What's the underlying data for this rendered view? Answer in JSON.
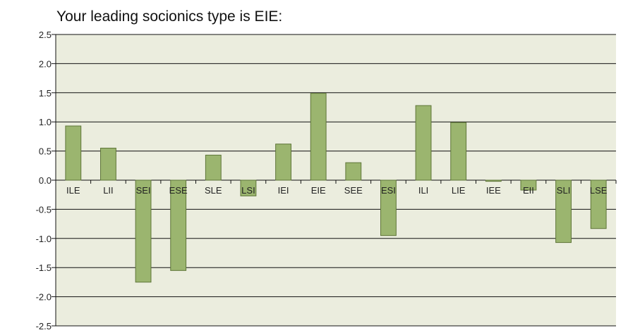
{
  "chart_data": {
    "type": "bar",
    "title": "Your leading socionics type is EIE:",
    "xlabel": "",
    "ylabel": "",
    "categories": [
      "ILE",
      "LII",
      "SEI",
      "ESE",
      "SLE",
      "LSI",
      "IEI",
      "EIE",
      "SEE",
      "ESI",
      "ILI",
      "LIE",
      "IEE",
      "EII",
      "SLI",
      "LSE"
    ],
    "values": [
      0.93,
      0.55,
      -1.75,
      -1.55,
      0.43,
      -0.27,
      0.62,
      1.49,
      0.3,
      -0.95,
      1.28,
      0.99,
      -0.02,
      -0.17,
      -1.07,
      -0.83
    ],
    "ylim": [
      -2.5,
      2.5
    ],
    "yticks": [
      "2.5",
      "2.0",
      "1.5",
      "1.0",
      "0.5",
      "0.0",
      "-0.5",
      "-1.0",
      "-1.5",
      "-2.0",
      "-2.5"
    ],
    "ytick_values": [
      2.5,
      2.0,
      1.5,
      1.0,
      0.5,
      0.0,
      -0.5,
      -1.0,
      -1.5,
      -2.0,
      -2.5
    ],
    "grid": true,
    "colors": {
      "plot_background": "#ebedde",
      "bar_fill": "#9bb56f",
      "bar_stroke": "#5e7538",
      "gridline": "#111111"
    }
  }
}
